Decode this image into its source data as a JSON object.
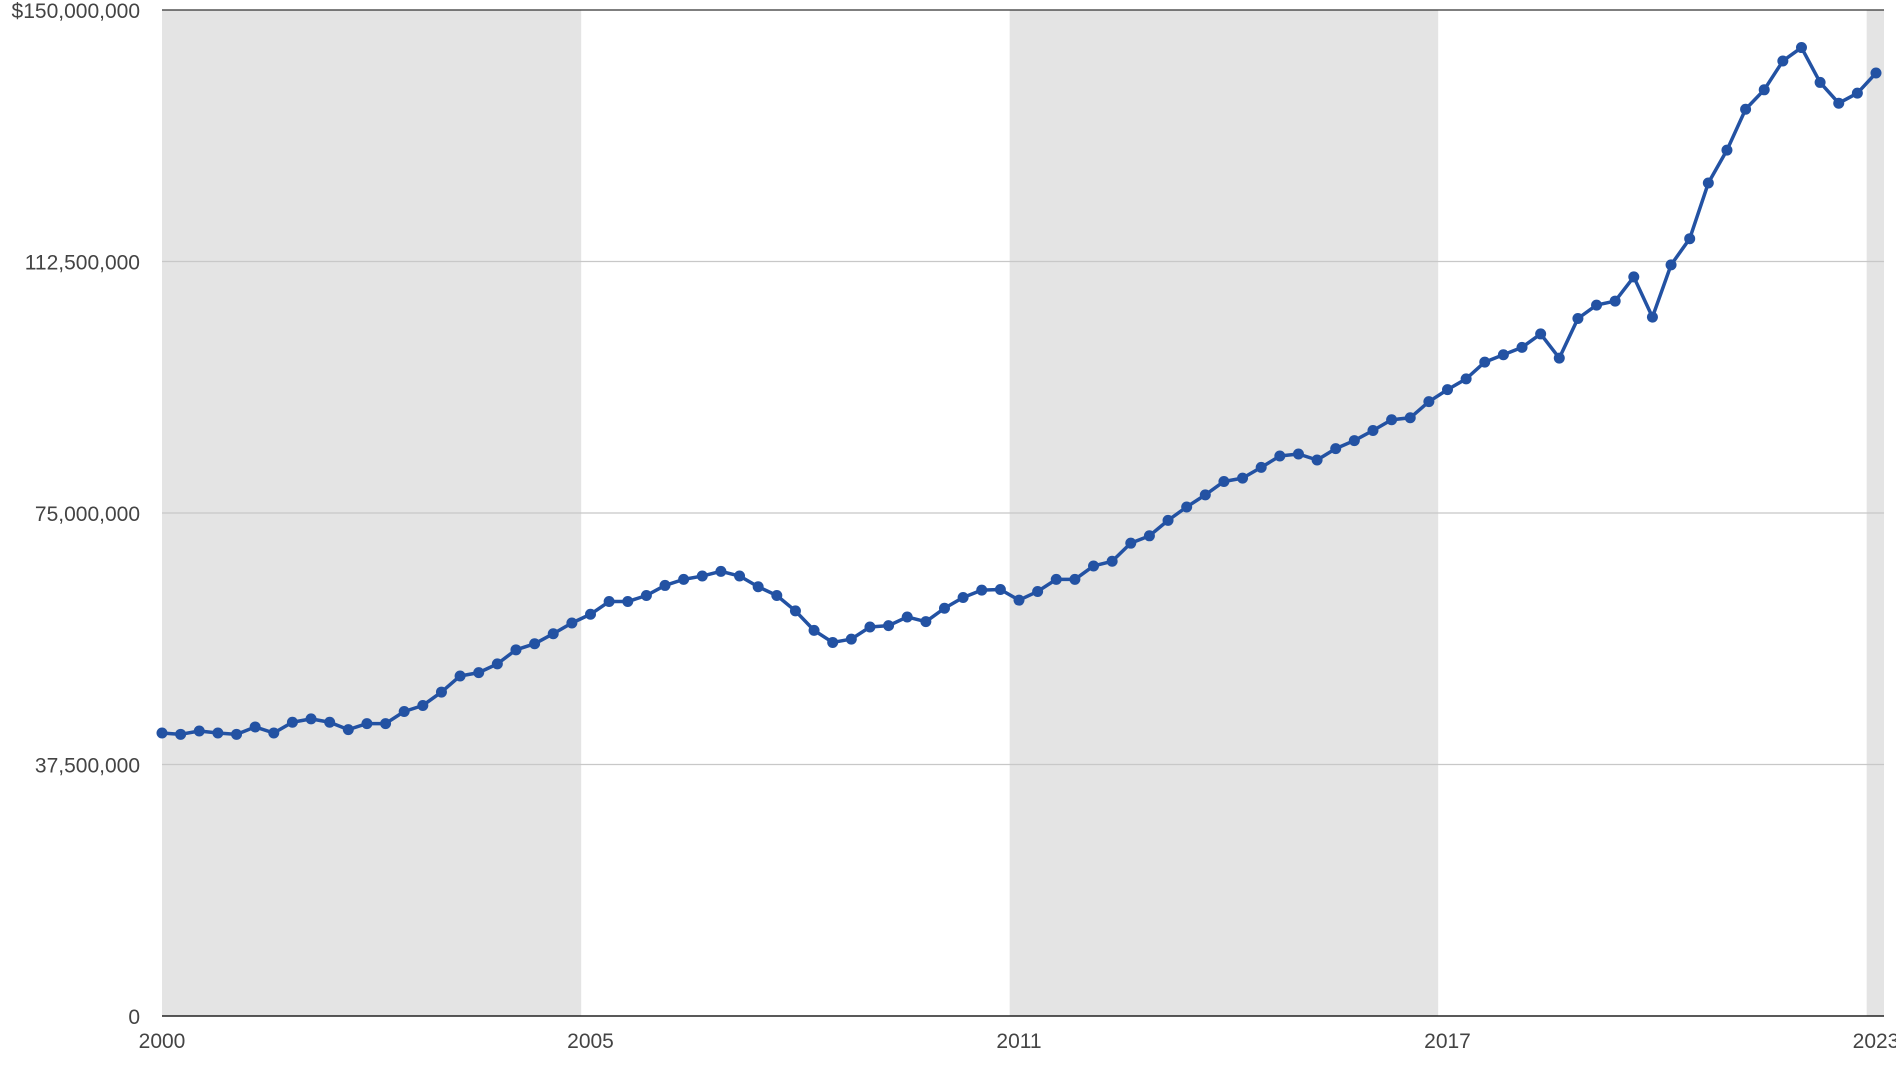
{
  "chart_data": {
    "type": "line",
    "categories": [
      "2000",
      null,
      null,
      null,
      null,
      null,
      null,
      null,
      null,
      null,
      null,
      null,
      null,
      null,
      null,
      null,
      null,
      null,
      null,
      null,
      null,
      null,
      null,
      "2005",
      null,
      null,
      null,
      null,
      null,
      null,
      null,
      null,
      null,
      null,
      null,
      null,
      null,
      null,
      null,
      null,
      null,
      null,
      null,
      null,
      null,
      null,
      "2011",
      null,
      null,
      null,
      null,
      null,
      null,
      null,
      null,
      null,
      null,
      null,
      null,
      null,
      null,
      null,
      null,
      null,
      null,
      null,
      null,
      null,
      null,
      "2017",
      null,
      null,
      null,
      null,
      null,
      null,
      null,
      null,
      null,
      null,
      null,
      null,
      null,
      null,
      null,
      null,
      null,
      null,
      null,
      null,
      null,
      null,
      "2023"
    ],
    "series": [
      {
        "color": "#2352a3",
        "values": [
          42200000,
          42000000,
          42500000,
          42200000,
          42000000,
          43100000,
          42200000,
          43800000,
          44300000,
          43800000,
          42700000,
          43600000,
          43600000,
          45400000,
          46300000,
          48300000,
          50700000,
          51200000,
          52500000,
          54600000,
          55500000,
          57000000,
          58600000,
          59900000,
          61800000,
          61800000,
          62700000,
          64200000,
          65100000,
          65600000,
          66300000,
          65600000,
          64000000,
          62700000,
          60400000,
          57500000,
          55700000,
          56200000,
          58000000,
          58200000,
          59500000,
          58800000,
          60800000,
          62400000,
          63500000,
          63600000,
          62000000,
          63300000,
          65100000,
          65100000,
          67100000,
          67800000,
          70500000,
          71600000,
          73900000,
          75900000,
          77700000,
          79700000,
          80200000,
          81800000,
          83500000,
          83800000,
          82900000,
          84600000,
          85800000,
          87300000,
          88900000,
          89200000,
          91600000,
          93400000,
          95000000,
          97500000,
          98600000,
          99700000,
          101700000,
          98100000,
          104000000,
          106000000,
          106600000,
          110200000,
          104200000,
          112000000,
          115900000,
          124200000,
          129100000,
          135200000,
          138100000,
          142400000,
          144400000,
          139200000,
          136100000,
          137600000,
          140600000
        ]
      }
    ],
    "ylim": [
      0,
      150000000
    ],
    "yticks": [
      0,
      {
        "value": 37500000,
        "label": "37,500,000"
      },
      {
        "value": 75000000,
        "label": "75,000,000"
      },
      {
        "value": 112500000,
        "label": "112,500,000"
      },
      {
        "value": 150000000,
        "label": "$150,000,000"
      }
    ],
    "grid": true
  }
}
